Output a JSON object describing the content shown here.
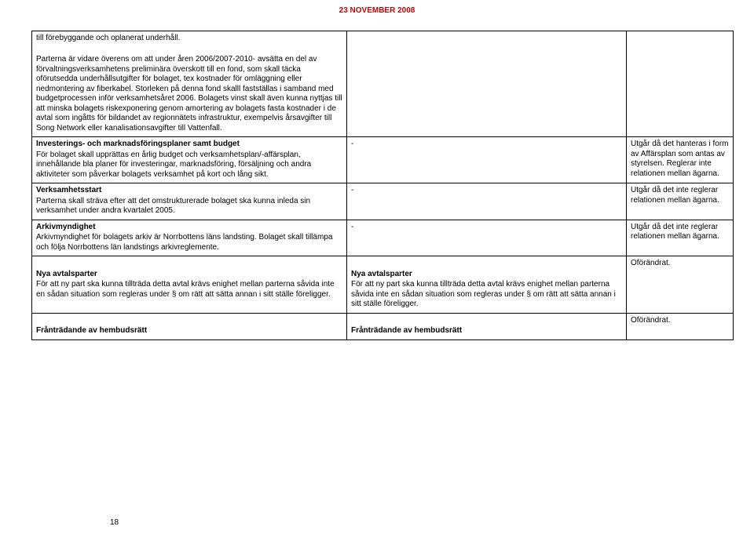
{
  "header": {
    "date": "23 NOVEMBER 2008",
    "page_number": "18"
  },
  "table": {
    "rows": [
      {
        "col1": {
          "segments": [
            {
              "text": "till förebyggande och oplanerat underhåll.",
              "bold": false
            },
            {
              "text": "",
              "bold": false,
              "spacer": true
            },
            {
              "text": "Parterna är vidare överens om att under åren 2006/2007-2010- avsätta en del av förvaltningsverksamhetens preliminära överskott till en fond, som skall täcka oförutsedda underhållsutgifter för bolaget, tex kostnader för omläggning eller nedmontering av fiberkabel. Storleken på denna fond skalll fastställas i samband med budgetprocessen inför verksamhetsåret 2006. Bolagets vinst skall även kunna nyttjas till att minska bolagets riskexponering genom amortering av bolagets fasta kostnader i de avtal som ingåtts för bildandet av regionnätets infrastruktur, exempelvis årsavgifter till Song Network eller kanalisationsavgifter till Vattenfall.",
              "bold": false
            }
          ]
        },
        "col2": {
          "segments": []
        },
        "col3": {
          "segments": []
        }
      },
      {
        "col1": {
          "segments": [
            {
              "text": "Investerings- och marknadsföringsplaner samt budget",
              "bold": true
            },
            {
              "text": "För bolaget skall upprättas en årlig budget och verksamhetsplan/-affärsplan, innehållande bla planer för investeringar, marknadsföring, försäljning och andra aktiviteter som påverkar bolagets verksamhet på kort och lång sikt.",
              "bold": false
            }
          ]
        },
        "col2": {
          "segments": [
            {
              "text": "-",
              "bold": false
            }
          ]
        },
        "col3": {
          "segments": [
            {
              "text": "Utgår då det hanteras i form av Affärsplan som antas av styrelsen. Reglerar inte relationen mellan ägarna.",
              "bold": false
            }
          ]
        }
      },
      {
        "col1": {
          "segments": [
            {
              "text": "Verksamhetsstart",
              "bold": true
            },
            {
              "text": "Parterna skall sträva efter att det omstrukturerade bolaget ska kunna inleda sin verksamhet under andra kvartalet 2005.",
              "bold": false
            }
          ]
        },
        "col2": {
          "segments": [
            {
              "text": "-",
              "bold": false
            }
          ]
        },
        "col3": {
          "segments": [
            {
              "text": "Utgår då det inte reglerar relationen mellan ägarna.",
              "bold": false
            }
          ]
        }
      },
      {
        "col1": {
          "segments": [
            {
              "text": "Arkivmyndighet",
              "bold": true
            },
            {
              "text": "Arkivmyndighet för bolagets arkiv är Norrbottens läns landsting. Bolaget skall tillämpa och följa Norrbottens län landstings arkivreglemente.",
              "bold": false
            }
          ]
        },
        "col2": {
          "segments": [
            {
              "text": "-",
              "bold": false
            }
          ]
        },
        "col3": {
          "segments": [
            {
              "text": "Utgår då det inte reglerar relationen mellan ägarna.",
              "bold": false
            }
          ]
        }
      },
      {
        "col1": {
          "segments": [
            {
              "text": "",
              "bold": false,
              "spacer": true
            },
            {
              "text": "Nya avtalsparter",
              "bold": true
            },
            {
              "text": "För att ny part ska kunna tillträda detta avtal krävs enighet mellan parterna såvida inte en sådan situation som regleras under § om rätt att sätta annan i sitt ställe föreligger.",
              "bold": false
            }
          ]
        },
        "col2": {
          "segments": [
            {
              "text": "",
              "bold": false,
              "spacer": true
            },
            {
              "text": "Nya avtalsparter",
              "bold": true
            },
            {
              "text": "För att ny part ska kunna tillträda detta avtal krävs enighet mellan parterna såvida inte en sådan situation som regleras under § om rätt att sätta annan i sitt ställe föreligger.",
              "bold": false
            }
          ]
        },
        "col3": {
          "segments": [
            {
              "text": "Oförändrat.",
              "bold": false
            }
          ]
        }
      },
      {
        "col1": {
          "segments": [
            {
              "text": "",
              "bold": false,
              "spacer": true
            },
            {
              "text": "Frånträdande av hembudsrätt",
              "bold": true
            }
          ]
        },
        "col2": {
          "segments": [
            {
              "text": "",
              "bold": false,
              "spacer": true
            },
            {
              "text": "Frånträdande av hembudsrätt",
              "bold": true
            }
          ]
        },
        "col3": {
          "segments": [
            {
              "text": "Oförändrat.",
              "bold": false
            }
          ]
        }
      }
    ]
  }
}
